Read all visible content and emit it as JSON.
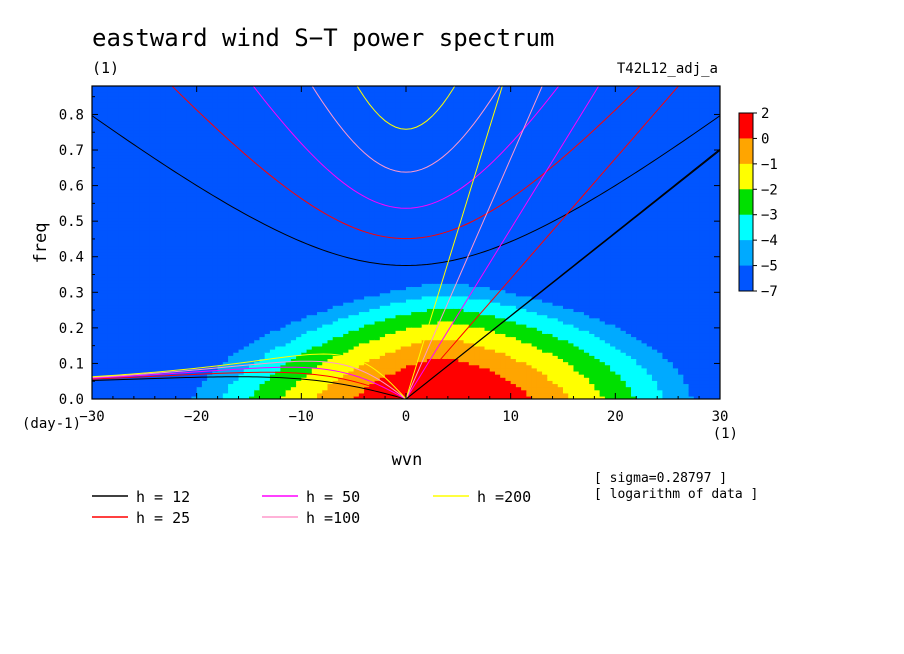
{
  "chart_data": {
    "type": "heatmap",
    "title": "eastward wind S−T power spectrum",
    "subtitle": "(1)",
    "run_label": "T42L12_adj_a",
    "xlabel": "wvn",
    "ylabel": "freq",
    "x_unit": "(1)",
    "y_unit": "(day-1)",
    "xlim": [
      -30,
      30
    ],
    "ylim": [
      0.0,
      0.88
    ],
    "x_ticks": [
      -30,
      -20,
      -10,
      0,
      10,
      20,
      30
    ],
    "x_tick_labels": [
      "−30",
      "−20",
      "−10",
      "0",
      "10",
      "20",
      "30"
    ],
    "y_ticks": [
      0.0,
      0.1,
      0.2,
      0.3,
      0.4,
      0.5,
      0.6,
      0.7,
      0.8
    ],
    "y_tick_labels": [
      "0.0",
      "0.1",
      "0.2",
      "0.3",
      "0.4",
      "0.5",
      "0.6",
      "0.7",
      "0.8"
    ],
    "colorbar": {
      "levels": [
        "2",
        "0",
        "−1",
        "−2",
        "−3",
        "−4",
        "−5",
        "−7"
      ],
      "colors": [
        "#ff0000",
        "#ffa500",
        "#ffff00",
        "#00e000",
        "#00ffff",
        "#00aaff",
        "#0055ff"
      ]
    },
    "band_colors": [
      "#0055ff",
      "#00aaff",
      "#00ffff",
      "#00e000",
      "#ffff00",
      "#ffa500",
      "#ff0000"
    ],
    "dispersion_curves": [
      {
        "label": "h = 12",
        "h": 12,
        "color": "#000000"
      },
      {
        "label": "h = 25",
        "h": 25,
        "color": "#ff0000"
      },
      {
        "label": "h = 50",
        "h": 50,
        "color": "#ff00ff"
      },
      {
        "label": "h =100",
        "h": 100,
        "color": "#ff99cc"
      },
      {
        "label": "h =200",
        "h": 200,
        "color": "#ffff00"
      }
    ],
    "kelvin_curve_color": "#000000",
    "notes": [
      "[ sigma=0.28797 ]",
      "[ logarithm of data ]"
    ]
  }
}
